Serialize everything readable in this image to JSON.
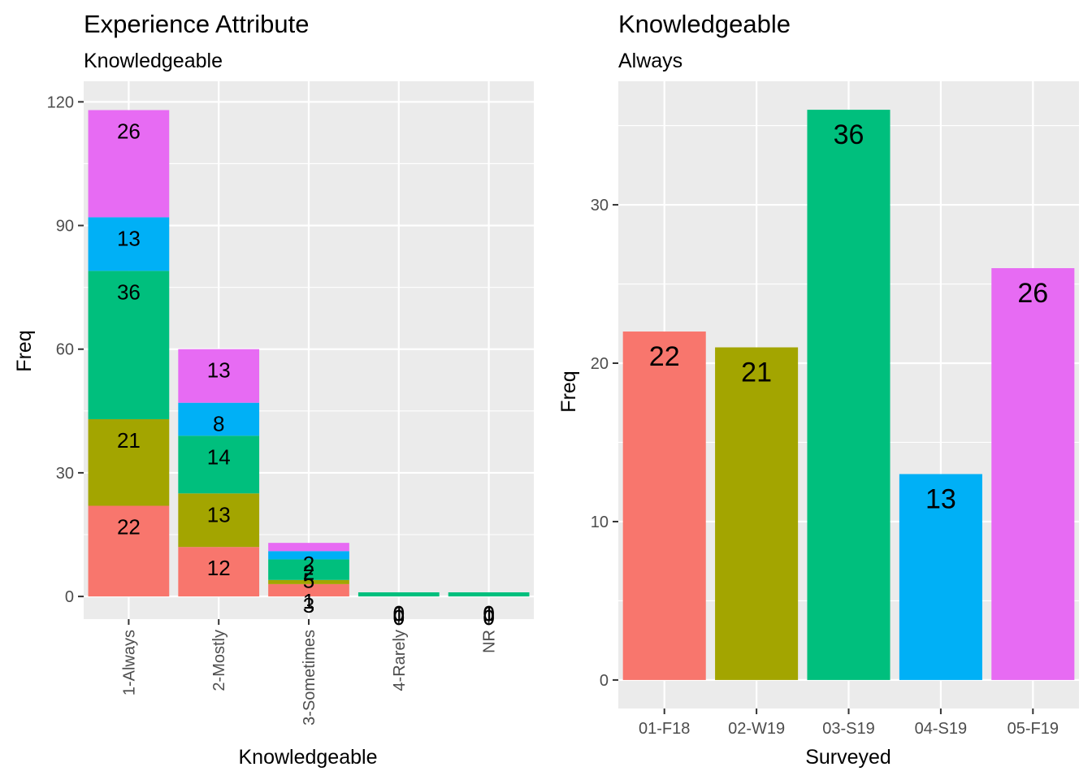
{
  "palette": {
    "01-F18": "#F8766D",
    "02-W19": "#A3A500",
    "03-S19": "#00BF7D",
    "04-S19": "#00B0F6",
    "05-F19": "#E76BF3",
    "panel_background": "#EBEBEB",
    "grid": "#FFFFFF"
  },
  "chart_data": [
    {
      "type": "bar",
      "stacked": true,
      "title": "Experience Attribute",
      "subtitle": "Knowledgeable",
      "xlabel": "Knowledgeable",
      "ylabel": "Freq",
      "categories": [
        "1-Always",
        "2-Mostly",
        "3-Sometimes",
        "4-Rarely",
        "NR"
      ],
      "ylim": [
        -5.5,
        125
      ],
      "yticks": [
        0,
        30,
        60,
        90,
        120
      ],
      "grid": true,
      "legend": "none",
      "series": [
        {
          "key": "01-F18",
          "values": [
            22,
            12,
            3,
            0,
            0
          ]
        },
        {
          "key": "02-W19",
          "values": [
            21,
            13,
            1,
            0,
            0
          ]
        },
        {
          "key": "03-S19",
          "values": [
            36,
            14,
            5,
            1,
            1
          ]
        },
        {
          "key": "04-S19",
          "values": [
            13,
            8,
            2,
            0,
            0
          ]
        },
        {
          "key": "05-F19",
          "values": [
            26,
            13,
            2,
            0,
            0
          ]
        }
      ]
    },
    {
      "type": "bar",
      "title": "Knowledgeable",
      "subtitle": "Always",
      "xlabel": "Surveyed",
      "ylabel": "Freq",
      "categories": [
        "01-F18",
        "02-W19",
        "03-S19",
        "04-S19",
        "05-F19"
      ],
      "values": [
        22,
        21,
        36,
        13,
        26
      ],
      "ylim": [
        -1.8,
        37.8
      ],
      "yticks": [
        0,
        10,
        20,
        30
      ],
      "grid": true,
      "legend": "none"
    }
  ]
}
